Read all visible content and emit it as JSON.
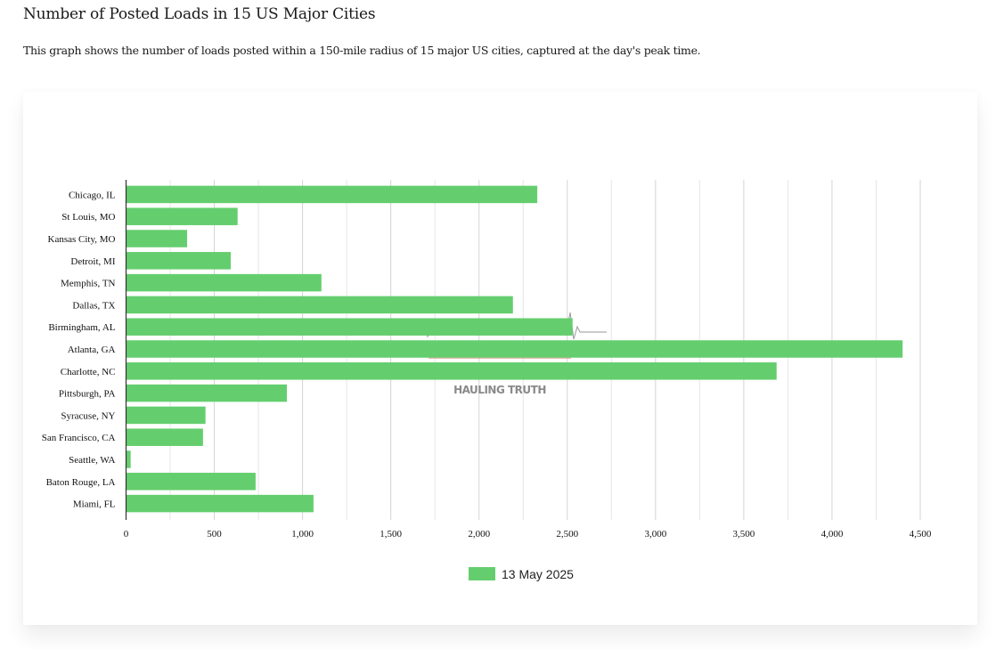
{
  "page": {
    "title": "Number of Posted Loads in 15 US Major Cities",
    "description": "This graph shows the number of loads posted within a 150-mile radius of 15 major US cities, captured at the day's peak time."
  },
  "watermark": {
    "text": "HAULING TRUTH"
  },
  "chart_data": {
    "type": "bar",
    "orientation": "horizontal",
    "title": "",
    "xlabel": "",
    "ylabel": "",
    "categories": [
      "Chicago, IL",
      "St Louis, MO",
      "Kansas City, MO",
      "Detroit, MI",
      "Memphis, TN",
      "Dallas, TX",
      "Birmingham, AL",
      "Atlanta, GA",
      "Charlotte, NC",
      "Pittsburgh, PA",
      "Syracuse, NY",
      "San Francisco, CA",
      "Seattle, WA",
      "Baton Rouge, LA",
      "Miami, FL"
    ],
    "series": [
      {
        "name": "13 May 2025",
        "color": "#64ce6e",
        "values": [
          2330,
          632,
          346,
          593,
          1107,
          2192,
          2530,
          4400,
          3686,
          911,
          450,
          436,
          26,
          734,
          1062
        ]
      }
    ],
    "xlim": [
      0,
      4500
    ],
    "x_ticks": [
      0,
      500,
      1000,
      1500,
      2000,
      2500,
      3000,
      3500,
      4000,
      4500
    ],
    "x_tick_labels": [
      "0",
      "500",
      "1,000",
      "1,500",
      "2,000",
      "2,500",
      "3,000",
      "3,500",
      "4,000",
      "4,500"
    ],
    "minor_grid_step": 250,
    "grid": true,
    "legend": "bottom-center",
    "colors": {
      "grid": "#d4d4d4",
      "minor_grid": "#e6e6e6",
      "axis": "#333333"
    }
  }
}
